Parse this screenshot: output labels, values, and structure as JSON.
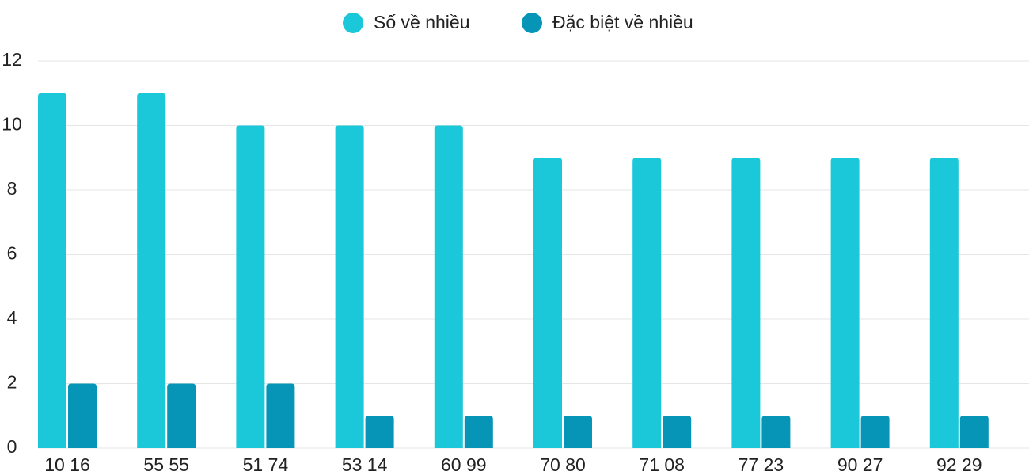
{
  "chart_data": {
    "type": "bar",
    "categories": [
      "10 16",
      "55 55",
      "51 74",
      "53 14",
      "60 99",
      "70 80",
      "71 08",
      "77 23",
      "90 27",
      "92 29"
    ],
    "series": [
      {
        "name": "Số về nhiều",
        "color": "#1bc8da",
        "values": [
          11,
          11,
          10,
          10,
          10,
          9,
          9,
          9,
          9,
          9
        ]
      },
      {
        "name": "Đặc biệt về nhiều",
        "color": "#0695b6",
        "values": [
          2,
          2,
          2,
          1,
          1,
          1,
          1,
          1,
          1,
          1
        ]
      }
    ],
    "ylim": [
      0,
      12
    ],
    "yticks": [
      0,
      2,
      4,
      6,
      8,
      10,
      12
    ],
    "grid": true,
    "legend": "top"
  }
}
